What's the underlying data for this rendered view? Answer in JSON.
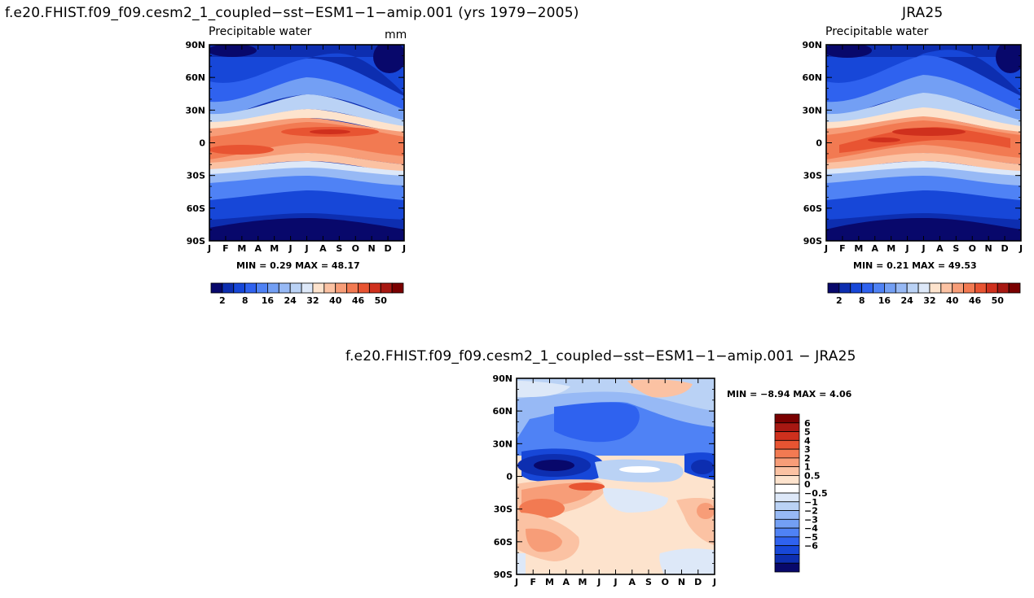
{
  "panels": [
    {
      "title": "f.e20.FHIST.f09_f09.cesm2_1_coupled−sst−ESM1−1−amip.001 (yrs 1979−2005)",
      "left_label": "Precipitable water",
      "right_label": "mm",
      "min_text": "MIN =    0.29  MAX =   48.17"
    },
    {
      "title": "JRA25",
      "left_label": "Precipitable water",
      "right_label": "",
      "min_text": "MIN =    0.21  MAX =   49.53"
    },
    {
      "title": "f.e20.FHIST.f09_f09.cesm2_1_coupled−sst−ESM1−1−amip.001  −  JRA25",
      "left_label": "",
      "right_label": "",
      "min_text": "MIN =   −8.94  MAX =    4.06"
    }
  ],
  "colors": {
    "top_levels": [
      "#08086b",
      "#0d2eb0",
      "#1747d8",
      "#2f62ef",
      "#4f82f5",
      "#739ff4",
      "#97b9f5",
      "#bad2f5",
      "#dde8f8",
      "#fde3cd",
      "#fbc2a3",
      "#f79d78",
      "#f27a52",
      "#e85432",
      "#cf301d",
      "#a71812",
      "#7a0000"
    ],
    "diff_levels": [
      "#08086b",
      "#0d2eb0",
      "#1747d8",
      "#2f62ef",
      "#4f82f5",
      "#739ff4",
      "#97b9f5",
      "#bad2f5",
      "#dde8f8",
      "#ffffff",
      "#fde3cd",
      "#fbc2a3",
      "#f79d78",
      "#f27a52",
      "#e85432",
      "#cf301d",
      "#a71812",
      "#7a0000"
    ]
  },
  "chart_data": [
    {
      "type": "heatmap",
      "title": "f.e20.FHIST.f09_f09.cesm2_1_coupled−sst−ESM1−1−amip.001 (yrs 1979−2005)",
      "left_string": "Precipitable water",
      "units": "mm",
      "x_ticks": [
        "J",
        "F",
        "M",
        "A",
        "M",
        "J",
        "J",
        "A",
        "S",
        "O",
        "N",
        "D",
        "J"
      ],
      "y_ticks": [
        "90N",
        "60N",
        "30N",
        "0",
        "30S",
        "60S",
        "90S"
      ],
      "ylim": [
        -90,
        90
      ],
      "min": 0.29,
      "max": 48.17,
      "colorbar_labels": [
        "2",
        "8",
        "16",
        "24",
        "32",
        "40",
        "46",
        "50"
      ],
      "colorbar_orientation": "horizontal"
    },
    {
      "type": "heatmap",
      "title": "JRA25",
      "left_string": "Precipitable water",
      "x_ticks": [
        "J",
        "F",
        "M",
        "A",
        "M",
        "J",
        "J",
        "A",
        "S",
        "O",
        "N",
        "D",
        "J"
      ],
      "y_ticks": [
        "90N",
        "60N",
        "30N",
        "0",
        "30S",
        "60S",
        "90S"
      ],
      "ylim": [
        -90,
        90
      ],
      "min": 0.21,
      "max": 49.53,
      "colorbar_labels": [
        "2",
        "8",
        "16",
        "24",
        "32",
        "40",
        "46",
        "50"
      ],
      "colorbar_orientation": "horizontal"
    },
    {
      "type": "heatmap",
      "title": "f.e20.FHIST.f09_f09.cesm2_1_coupled−sst−ESM1−1−amip.001  −  JRA25",
      "x_ticks": [
        "J",
        "F",
        "M",
        "A",
        "M",
        "J",
        "J",
        "A",
        "S",
        "O",
        "N",
        "D",
        "J"
      ],
      "y_ticks": [
        "90N",
        "60N",
        "30N",
        "0",
        "30S",
        "60S",
        "90S"
      ],
      "ylim": [
        -90,
        90
      ],
      "min": -8.94,
      "max": 4.06,
      "colorbar_labels": [
        "6",
        "5",
        "4",
        "3",
        "2",
        "1",
        "0.5",
        "0",
        "−0.5",
        "−1",
        "−2",
        "−3",
        "−4",
        "−5",
        "−6"
      ],
      "colorbar_orientation": "vertical"
    }
  ]
}
